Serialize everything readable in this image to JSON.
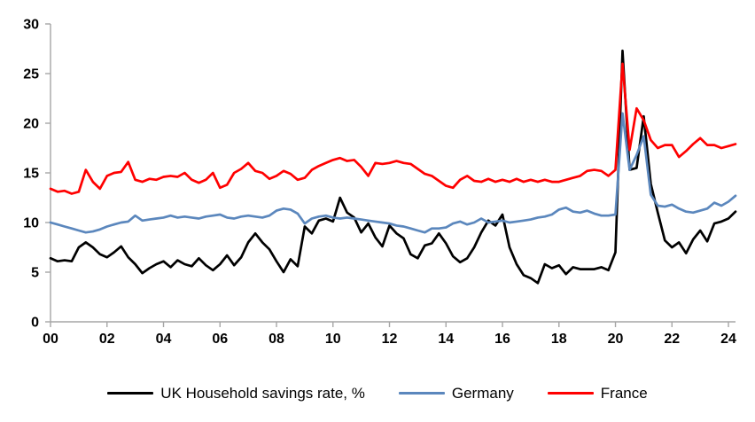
{
  "chart_data": {
    "type": "line",
    "title": "",
    "subtitle": "",
    "grid": false,
    "legend_position": "bottom",
    "axis_color": "#a6a6a6",
    "text_color": "#000000",
    "frequency": "quarterly",
    "y_axis": {
      "range": [
        0,
        30
      ],
      "ticks": [
        0,
        5,
        10,
        15,
        20,
        25,
        30
      ]
    },
    "x_axis": {
      "range_years": [
        0,
        24.25
      ],
      "tick_step_years": 2,
      "tick_labels": [
        "00",
        "02",
        "04",
        "06",
        "08",
        "10",
        "12",
        "14",
        "16",
        "18",
        "20",
        "22",
        "24"
      ]
    },
    "series": [
      {
        "name": "UK Household savings rate, %",
        "color": "#000000",
        "values": [
          6.4,
          6.1,
          6.2,
          6.1,
          7.5,
          8.0,
          7.5,
          6.8,
          6.5,
          7.0,
          7.6,
          6.5,
          5.8,
          4.9,
          5.4,
          5.8,
          6.1,
          5.5,
          6.2,
          5.8,
          5.6,
          6.4,
          5.7,
          5.2,
          5.8,
          6.7,
          5.7,
          6.5,
          8.0,
          8.9,
          8.0,
          7.3,
          6.1,
          5.0,
          6.3,
          5.6,
          9.6,
          8.9,
          10.2,
          10.4,
          10.1,
          12.5,
          11.0,
          10.5,
          9.0,
          9.9,
          8.5,
          7.6,
          9.7,
          8.9,
          8.4,
          6.8,
          6.4,
          7.7,
          7.9,
          8.9,
          7.9,
          6.6,
          6.0,
          6.4,
          7.5,
          9.0,
          10.2,
          9.7,
          10.8,
          7.5,
          5.8,
          4.7,
          4.4,
          3.9,
          5.8,
          5.4,
          5.7,
          4.8,
          5.5,
          5.3,
          5.3,
          5.3,
          5.5,
          5.2,
          7.0,
          27.3,
          15.3,
          15.5,
          20.7,
          13.9,
          11.0,
          8.2,
          7.5,
          8.0,
          6.9,
          8.3,
          9.2,
          8.1,
          9.9,
          10.1,
          10.4,
          11.1
        ]
      },
      {
        "name": "Germany",
        "color": "#5b87bd",
        "values": [
          10.0,
          9.8,
          9.6,
          9.4,
          9.2,
          9.0,
          9.1,
          9.3,
          9.6,
          9.8,
          10.0,
          10.1,
          10.7,
          10.2,
          10.3,
          10.4,
          10.5,
          10.7,
          10.5,
          10.6,
          10.5,
          10.4,
          10.6,
          10.7,
          10.8,
          10.5,
          10.4,
          10.6,
          10.7,
          10.6,
          10.5,
          10.7,
          11.2,
          11.4,
          11.3,
          10.9,
          9.9,
          10.4,
          10.6,
          10.7,
          10.5,
          10.4,
          10.5,
          10.4,
          10.3,
          10.2,
          10.1,
          10.0,
          9.9,
          9.7,
          9.6,
          9.4,
          9.2,
          9.0,
          9.4,
          9.4,
          9.5,
          9.9,
          10.1,
          9.8,
          10.0,
          10.4,
          10.0,
          10.1,
          10.2,
          10.0,
          10.1,
          10.2,
          10.3,
          10.5,
          10.6,
          10.8,
          11.3,
          11.5,
          11.1,
          11.0,
          11.2,
          10.9,
          10.7,
          10.7,
          10.8,
          21.0,
          15.3,
          16.8,
          18.7,
          12.8,
          11.7,
          11.6,
          11.8,
          11.4,
          11.1,
          11.0,
          11.2,
          11.4,
          12.0,
          11.7,
          12.1,
          12.7
        ]
      },
      {
        "name": "France",
        "color": "#ff0000",
        "values": [
          13.4,
          13.1,
          13.2,
          12.9,
          13.1,
          15.3,
          14.1,
          13.4,
          14.7,
          15.0,
          15.1,
          16.1,
          14.3,
          14.1,
          14.4,
          14.3,
          14.6,
          14.7,
          14.6,
          15.0,
          14.3,
          14.0,
          14.3,
          15.0,
          13.5,
          13.8,
          15.0,
          15.4,
          16.0,
          15.2,
          15.0,
          14.4,
          14.7,
          15.2,
          14.9,
          14.3,
          14.5,
          15.3,
          15.7,
          16.0,
          16.3,
          16.5,
          16.2,
          16.3,
          15.6,
          14.7,
          16.0,
          15.9,
          16.0,
          16.2,
          16.0,
          15.9,
          15.4,
          14.9,
          14.7,
          14.2,
          13.7,
          13.5,
          14.3,
          14.7,
          14.2,
          14.1,
          14.4,
          14.1,
          14.3,
          14.1,
          14.4,
          14.1,
          14.3,
          14.1,
          14.3,
          14.1,
          14.1,
          14.3,
          14.5,
          14.7,
          15.2,
          15.3,
          15.2,
          14.7,
          15.3,
          26.0,
          17.3,
          21.5,
          20.3,
          18.3,
          17.5,
          17.8,
          17.8,
          16.6,
          17.2,
          17.9,
          18.5,
          17.8,
          17.8,
          17.5,
          17.7,
          17.9
        ]
      }
    ]
  }
}
